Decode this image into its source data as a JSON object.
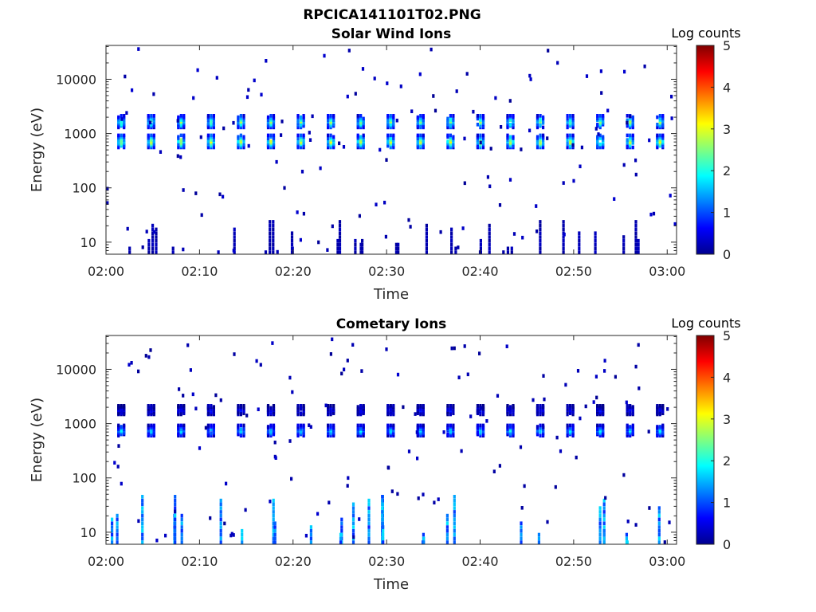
{
  "figure": {
    "title": "RPCICA141101T02.PNG"
  },
  "chart_data": [
    {
      "type": "heatmap",
      "title": "Solar Wind Ions",
      "xlabel": "Time",
      "ylabel": "Energy (eV)",
      "x_ticks": [
        "02:00",
        "02:10",
        "02:20",
        "02:30",
        "02:40",
        "02:50",
        "03:00"
      ],
      "xlim_minutes": [
        0,
        61
      ],
      "y_scale": "log",
      "y_ticks": [
        10,
        100,
        1000,
        10000
      ],
      "y_tick_labels": [
        "10",
        "100",
        "1000",
        "10000"
      ],
      "ylim": [
        6,
        42000
      ],
      "colorbar": {
        "label": "Log counts",
        "range": [
          0,
          5
        ],
        "ticks": [
          "0",
          "1",
          "2",
          "3",
          "4",
          "5"
        ]
      },
      "bursts": {
        "period_minutes": 3.2,
        "first_minute": 1.5,
        "bands": [
          {
            "energy_low": 600,
            "energy_high": 1000,
            "peak_log_counts": 3.0
          },
          {
            "energy_low": 1400,
            "energy_high": 2300,
            "peak_log_counts": 2.6
          }
        ],
        "low_energy_range": [
          6,
          30
        ],
        "low_energy_log_counts": 0.3
      }
    },
    {
      "type": "heatmap",
      "title": "Cometary Ions",
      "xlabel": "Time",
      "ylabel": "Energy (eV)",
      "x_ticks": [
        "02:00",
        "02:10",
        "02:20",
        "02:30",
        "02:40",
        "02:50",
        "03:00"
      ],
      "xlim_minutes": [
        0,
        61
      ],
      "y_scale": "log",
      "y_ticks": [
        10,
        100,
        1000,
        10000
      ],
      "y_tick_labels": [
        "10",
        "100",
        "1000",
        "10000"
      ],
      "ylim": [
        6,
        42000
      ],
      "colorbar": {
        "label": "Log counts",
        "range": [
          0,
          5
        ],
        "ticks": [
          "0",
          "1",
          "2",
          "3",
          "4",
          "5"
        ]
      },
      "bursts": {
        "period_minutes": 3.2,
        "first_minute": 1.5,
        "bands": [
          {
            "energy_low": 650,
            "energy_high": 1000,
            "peak_log_counts": 1.8
          },
          {
            "energy_low": 1600,
            "energy_high": 2300,
            "peak_log_counts": 0.6
          }
        ],
        "low_energy_range": [
          6,
          60
        ],
        "low_energy_log_counts": 1.6
      }
    }
  ]
}
